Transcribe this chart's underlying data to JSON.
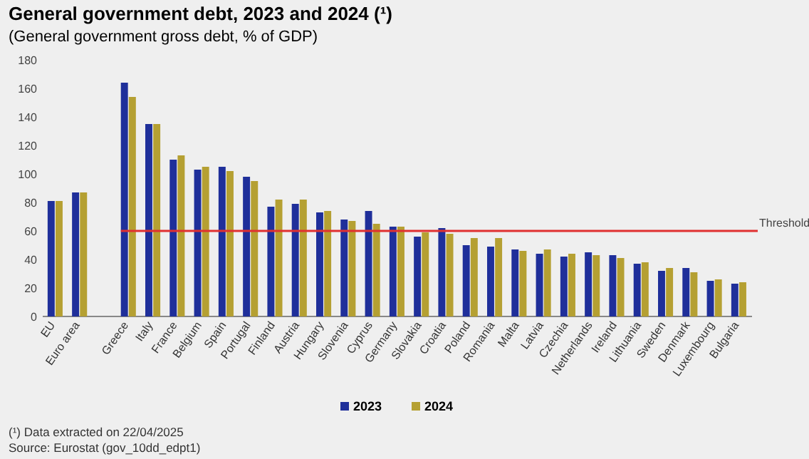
{
  "chart_data": {
    "type": "bar",
    "title": "General government debt, 2023 and 2024 (¹)",
    "subtitle": "(General government gross debt, % of GDP)",
    "categories": [
      "EU",
      "Euro area",
      null,
      "Greece",
      "Italy",
      "France",
      "Belgium",
      "Spain",
      "Portugal",
      "Finland",
      "Austria",
      "Hungary",
      "Slovenia",
      "Cyprus",
      "Germany",
      "Slovakia",
      "Croatia",
      "Poland",
      "Romania",
      "Malta",
      "Latvia",
      "Czechia",
      "Netherlands",
      "Ireland",
      "Lithuania",
      "Sweden",
      "Denmark",
      "Luxembourg",
      "Bulgaria"
    ],
    "series": [
      {
        "name": "2023",
        "color": "#1f2f9a",
        "values": [
          81,
          87,
          null,
          164,
          135,
          110,
          103,
          105,
          98,
          77,
          79,
          73,
          68,
          74,
          63,
          56,
          62,
          50,
          49,
          47,
          44,
          42,
          45,
          43,
          37,
          32,
          34,
          25,
          23
        ]
      },
      {
        "name": "2024",
        "color": "#b5a032",
        "values": [
          81,
          87,
          null,
          154,
          135,
          113,
          105,
          102,
          95,
          82,
          82,
          74,
          67,
          65,
          63,
          59,
          58,
          55,
          55,
          46,
          47,
          44,
          43,
          41,
          38,
          34,
          31,
          26,
          24
        ]
      }
    ],
    "ylim": [
      0,
      180
    ],
    "yticks": [
      0,
      20,
      40,
      60,
      80,
      100,
      120,
      140,
      160,
      180
    ],
    "ref_lines": [
      {
        "axis": "y",
        "value": 60,
        "label": "Threshold",
        "color": "#e03030"
      }
    ],
    "legend": "bottom",
    "grid": false,
    "annotations": [
      "(¹) Data extracted on 22/04/2025",
      "Source: Eurostat (gov_10dd_edpt1)"
    ]
  }
}
